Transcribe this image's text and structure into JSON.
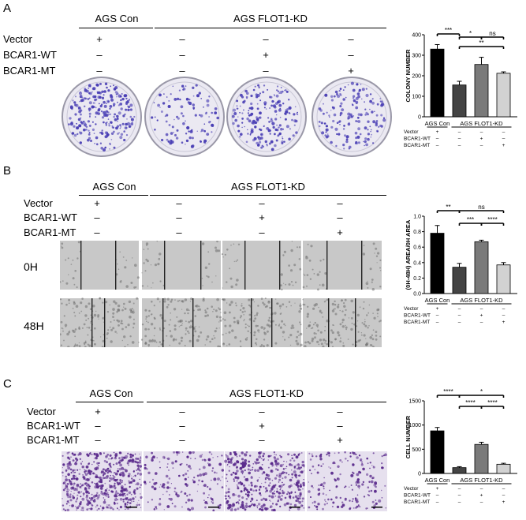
{
  "panels": [
    {
      "letter": "A",
      "groups": {
        "control": "AGS Con",
        "kd": "AGS FLOT1-KD"
      },
      "rows": [
        {
          "label": "Vector",
          "values": [
            "+",
            "–",
            "–",
            "–"
          ]
        },
        {
          "label": "BCAR1-WT",
          "values": [
            "–",
            "–",
            "+",
            "–"
          ]
        },
        {
          "label": "BCAR1-MT",
          "values": [
            "–",
            "–",
            "–",
            "+"
          ]
        }
      ],
      "chart_data": {
        "type": "bar",
        "ylabel": "COLONY NUMBER",
        "ylim": [
          0,
          400
        ],
        "yticks": [
          "0",
          "100",
          "200",
          "300",
          "400"
        ],
        "categories": [
          "Con Vector",
          "KD Vector",
          "KD BCAR1-WT",
          "KD BCAR1-MT"
        ],
        "values": [
          330,
          155,
          255,
          212
        ],
        "errors": [
          22,
          18,
          35,
          7
        ],
        "colors": [
          "#000000",
          "#444444",
          "#7a7a7a",
          "#d2d2d2"
        ],
        "groups": {
          "control": "AGS Con",
          "kd": "AGS FLOT1-KD"
        },
        "rows": [
          {
            "label": "Vector",
            "values": [
              "+",
              "–",
              "–",
              "–"
            ]
          },
          {
            "label": "BCAR1-WT",
            "values": [
              "–",
              "–",
              "+",
              "–"
            ]
          },
          {
            "label": "BCAR1-MT",
            "values": [
              "–",
              "–",
              "–",
              "+"
            ]
          }
        ],
        "significance": [
          {
            "from": 0,
            "to": 1,
            "label": "***"
          },
          {
            "from": 1,
            "to": 2,
            "label": "*"
          },
          {
            "from": 2,
            "to": 3,
            "label": "ns"
          },
          {
            "from": 1,
            "to": 3,
            "label": "**"
          }
        ]
      }
    },
    {
      "letter": "B",
      "groups": {
        "control": "AGS Con",
        "kd": "AGS FLOT1-KD"
      },
      "rows": [
        {
          "label": "Vector",
          "values": [
            "+",
            "–",
            "–",
            "–"
          ]
        },
        {
          "label": "BCAR1-WT",
          "values": [
            "–",
            "–",
            "+",
            "–"
          ]
        },
        {
          "label": "BCAR1-MT",
          "values": [
            "–",
            "–",
            "–",
            "+"
          ]
        }
      ],
      "time_labels": [
        "0H",
        "48H"
      ],
      "chart_data": {
        "type": "bar",
        "ylabel": "(0H-48H) AREA/0H AREA",
        "ylim": [
          0,
          1.0
        ],
        "yticks": [
          "0.0",
          "0.2",
          "0.4",
          "0.6",
          "0.8",
          "1.0"
        ],
        "categories": [
          "Con Vector",
          "KD Vector",
          "KD BCAR1-WT",
          "KD BCAR1-MT"
        ],
        "values": [
          0.78,
          0.34,
          0.67,
          0.37
        ],
        "errors": [
          0.1,
          0.05,
          0.02,
          0.03
        ],
        "colors": [
          "#000000",
          "#444444",
          "#7a7a7a",
          "#d2d2d2"
        ],
        "groups": {
          "control": "AGS Con",
          "kd": "AGS FLOT1-KD"
        },
        "rows": [
          {
            "label": "Vector",
            "values": [
              "+",
              "–",
              "–",
              "–"
            ]
          },
          {
            "label": "BCAR1-WT",
            "values": [
              "–",
              "–",
              "+",
              "–"
            ]
          },
          {
            "label": "BCAR1-MT",
            "values": [
              "–",
              "–",
              "–",
              "+"
            ]
          }
        ],
        "significance": [
          {
            "from": 0,
            "to": 1,
            "label": "**"
          },
          {
            "from": 1,
            "to": 3,
            "label": "ns"
          },
          {
            "from": 1,
            "to": 2,
            "label": "***"
          },
          {
            "from": 2,
            "to": 3,
            "label": "****"
          }
        ]
      }
    },
    {
      "letter": "C",
      "groups": {
        "control": "AGS Con",
        "kd": "AGS FLOT1-KD"
      },
      "rows": [
        {
          "label": "Vector",
          "values": [
            "+",
            "–",
            "–",
            "–"
          ]
        },
        {
          "label": "BCAR1-WT",
          "values": [
            "–",
            "–",
            "+",
            "–"
          ]
        },
        {
          "label": "BCAR1-MT",
          "values": [
            "–",
            "–",
            "–",
            "+"
          ]
        }
      ],
      "chart_data": {
        "type": "bar",
        "ylabel": "CELL NUMBER",
        "ylim": [
          0,
          1500
        ],
        "yticks": [
          "0",
          "500",
          "1000",
          "1500"
        ],
        "categories": [
          "Con Vector",
          "KD Vector",
          "KD BCAR1-WT",
          "KD BCAR1-MT"
        ],
        "values": [
          880,
          120,
          600,
          190
        ],
        "errors": [
          70,
          20,
          45,
          20
        ],
        "colors": [
          "#000000",
          "#444444",
          "#7a7a7a",
          "#d2d2d2"
        ],
        "groups": {
          "control": "AGS Con",
          "kd": "AGS FLOT1-KD"
        },
        "rows": [
          {
            "label": "Vector",
            "values": [
              "+",
              "–",
              "–",
              "–"
            ]
          },
          {
            "label": "BCAR1-WT",
            "values": [
              "–",
              "–",
              "+",
              "–"
            ]
          },
          {
            "label": "BCAR1-MT",
            "values": [
              "–",
              "–",
              "–",
              "+"
            ]
          }
        ],
        "significance": [
          {
            "from": 0,
            "to": 1,
            "label": "****"
          },
          {
            "from": 1,
            "to": 3,
            "label": "*"
          },
          {
            "from": 1,
            "to": 2,
            "label": "****"
          },
          {
            "from": 2,
            "to": 3,
            "label": "****"
          }
        ]
      }
    }
  ],
  "colors": {
    "colony_stain": "#4a3fb5",
    "plate": "#ebe9f2",
    "transwell_bg": "#e6e0ee",
    "transwell_cell": "#5a2a8c",
    "wound_bg": "#c8c8c8"
  }
}
